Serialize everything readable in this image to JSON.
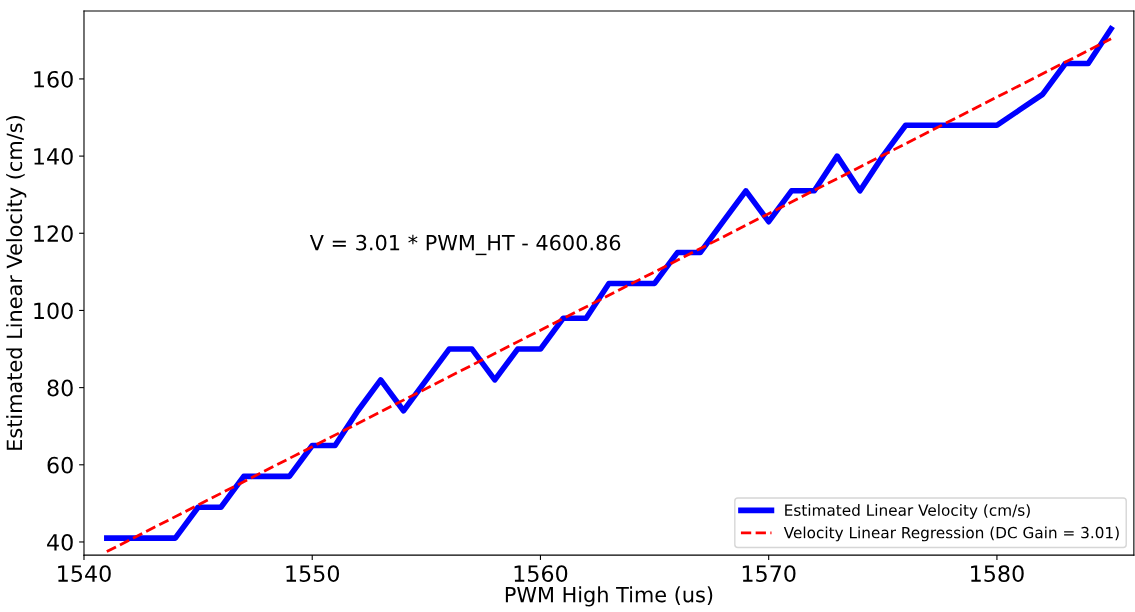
{
  "chart_data": {
    "type": "line",
    "xlabel": "PWM High Time (us)",
    "ylabel": "Estimated Linear Velocity (cm/s)",
    "annotations": [
      "V = 3.01 * PWM_HT - 4600.86"
    ],
    "x": [
      1541,
      1542,
      1543,
      1544,
      1545,
      1546,
      1547,
      1548,
      1549,
      1550,
      1551,
      1552,
      1553,
      1554,
      1555,
      1556,
      1557,
      1558,
      1559,
      1560,
      1561,
      1562,
      1563,
      1564,
      1565,
      1566,
      1567,
      1568,
      1569,
      1570,
      1571,
      1572,
      1573,
      1574,
      1575,
      1576,
      1577,
      1578,
      1579,
      1580,
      1581,
      1582,
      1583,
      1584,
      1585
    ],
    "series": [
      {
        "name": "Estimated Linear Velocity (cm/s)",
        "color": "#0000ff",
        "line_style": "solid",
        "values": [
          41,
          41,
          41,
          41,
          49,
          49,
          57,
          57,
          57,
          65,
          65,
          74,
          82,
          74,
          82,
          90,
          90,
          82,
          90,
          90,
          98,
          98,
          107,
          107,
          107,
          115,
          115,
          123,
          131,
          123,
          131,
          131,
          140,
          131,
          140,
          148,
          148,
          148,
          148,
          148,
          152,
          156,
          164,
          164,
          173
        ]
      },
      {
        "name": "Velocity Linear Regression (DC Gain = 3.01)",
        "color": "#ff0000",
        "line_style": "dashed",
        "x": [
          1541,
          1585
        ],
        "values": [
          37.5,
          170.4
        ]
      }
    ],
    "xlim": [
      1540,
      1586
    ],
    "ylim": [
      36.6,
      177.6
    ],
    "xticks": [
      1540,
      1550,
      1560,
      1570,
      1580
    ],
    "yticks": [
      40,
      60,
      80,
      100,
      120,
      140,
      160
    ],
    "grid": false,
    "legend": "bottom right",
    "marker": "none"
  }
}
